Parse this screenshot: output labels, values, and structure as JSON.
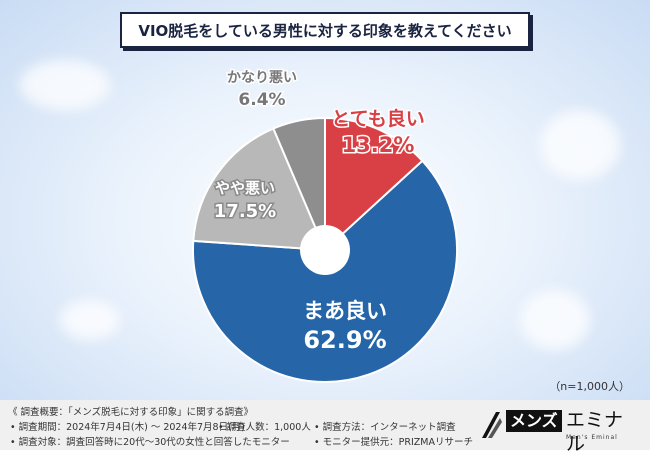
{
  "title": "VIO脱毛をしている男性に対する印象を教えてください",
  "sample_note": "（n=1,000人）",
  "colors": {
    "good": "#d94045",
    "fair": "#2565a8",
    "slightly_bad": "#b8b8b8",
    "quite_bad": "#8e8e8e",
    "title_border": "#1a2440"
  },
  "chart_data": {
    "type": "pie",
    "title": "VIO脱毛をしている男性に対する印象を教えてください",
    "categories": [
      "とても良い",
      "まあ良い",
      "やや悪い",
      "かなり悪い"
    ],
    "values": [
      13.2,
      62.9,
      17.5,
      6.4
    ],
    "value_labels": [
      "13.2%",
      "62.9%",
      "17.5%",
      "6.4%"
    ],
    "unit": "%"
  },
  "footer": {
    "heading": "《 調査概要：「メンズ脱毛に対する印象」に関する調査》",
    "period": "• 調査期間：2024年7月4日(木) ～ 2024年7月8日(月)",
    "count": "• 調査人数：1,000人",
    "method": "• 調査方法：インターネット調査",
    "target": "• 調査対象：調査回答時に20代～30代の女性と回答したモニター",
    "provider": "• モニター提供元：PRIZMAリサーチ"
  },
  "logo": {
    "box_text": "メンズ",
    "text": "エミナル",
    "sub": "Men's Eminal"
  }
}
